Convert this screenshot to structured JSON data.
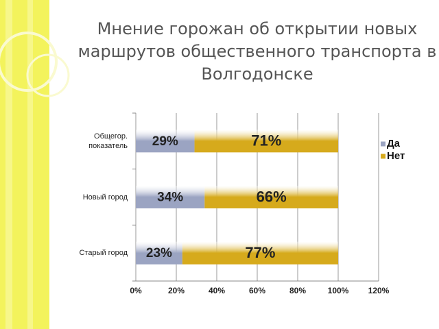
{
  "chart_data": {
    "type": "stacked_bar_horizontal",
    "title": "Мнение горожан об открытии новых маршрутов общественного транспорта в Волгодонске",
    "categories": [
      "Общегор. показатель",
      "Новый город",
      "Старый город"
    ],
    "series": [
      {
        "name": "Да",
        "color": "#9ba4c2",
        "values": [
          29,
          34,
          23
        ],
        "value_labels": [
          "29%",
          "34%",
          "23%"
        ]
      },
      {
        "name": "Нет",
        "color": "#d6aa1c",
        "values": [
          71,
          66,
          77
        ],
        "value_labels": [
          "71%",
          "66%",
          "77%"
        ]
      }
    ],
    "xlim": [
      0,
      120
    ],
    "xticks": [
      {
        "value": 0,
        "label": "0%"
      },
      {
        "value": 20,
        "label": "20%"
      },
      {
        "value": 40,
        "label": "40%"
      },
      {
        "value": 60,
        "label": "60%"
      },
      {
        "value": 80,
        "label": "80%"
      },
      {
        "value": 100,
        "label": "100%"
      },
      {
        "value": 120,
        "label": "120%"
      }
    ],
    "grid": true,
    "legend": "right"
  }
}
